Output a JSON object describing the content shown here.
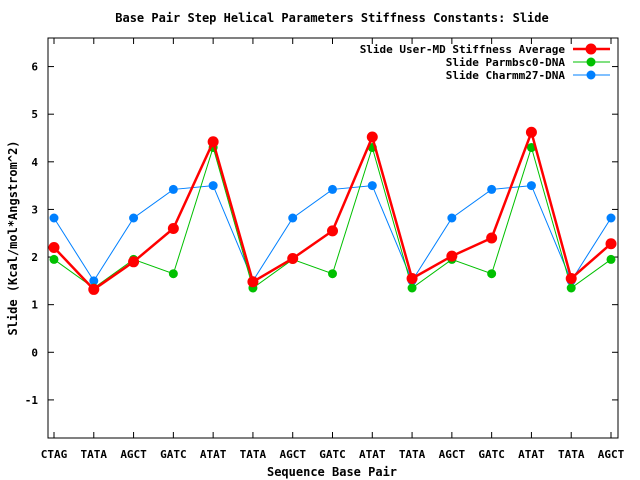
{
  "chart_data": {
    "type": "line",
    "title": "Base Pair Step Helical Parameters Stiffness Constants: Slide",
    "xlabel": "Sequence Base Pair",
    "ylabel": "Slide (Kcal/mol*Angstrom^2)",
    "ylim": [
      -1.8,
      6.6
    ],
    "yticks": [
      "-1",
      "0",
      "1",
      "2",
      "3",
      "4",
      "5",
      "6"
    ],
    "ytick_values": [
      -1,
      0,
      1,
      2,
      3,
      4,
      5,
      6
    ],
    "categories": [
      "CTAG",
      "TATA",
      "AGCT",
      "GATC",
      "ATAT",
      "TATA",
      "AGCT",
      "GATC",
      "ATAT",
      "TATA",
      "AGCT",
      "GATC",
      "ATAT",
      "TATA",
      "AGCT"
    ],
    "grid": false,
    "legend_position": "top-right",
    "series": [
      {
        "name": "Slide User-MD Stiffness Average",
        "color": "#ff0000",
        "values": [
          2.2,
          1.32,
          1.9,
          2.6,
          4.42,
          1.48,
          1.97,
          2.55,
          4.52,
          1.55,
          2.02,
          2.4,
          4.62,
          1.55,
          2.28
        ]
      },
      {
        "name": "Slide Parmbsc0-DNA",
        "color": "#00c000",
        "values": [
          1.95,
          1.35,
          1.95,
          1.65,
          4.3,
          1.35,
          1.95,
          1.65,
          4.3,
          1.35,
          1.95,
          1.65,
          4.3,
          1.35,
          1.95
        ]
      },
      {
        "name": "Slide Charmm27-DNA",
        "color": "#0080ff",
        "values": [
          2.82,
          1.5,
          2.82,
          3.42,
          3.5,
          1.5,
          2.82,
          3.42,
          3.5,
          1.5,
          2.82,
          3.42,
          3.5,
          1.5,
          2.82
        ]
      }
    ]
  }
}
